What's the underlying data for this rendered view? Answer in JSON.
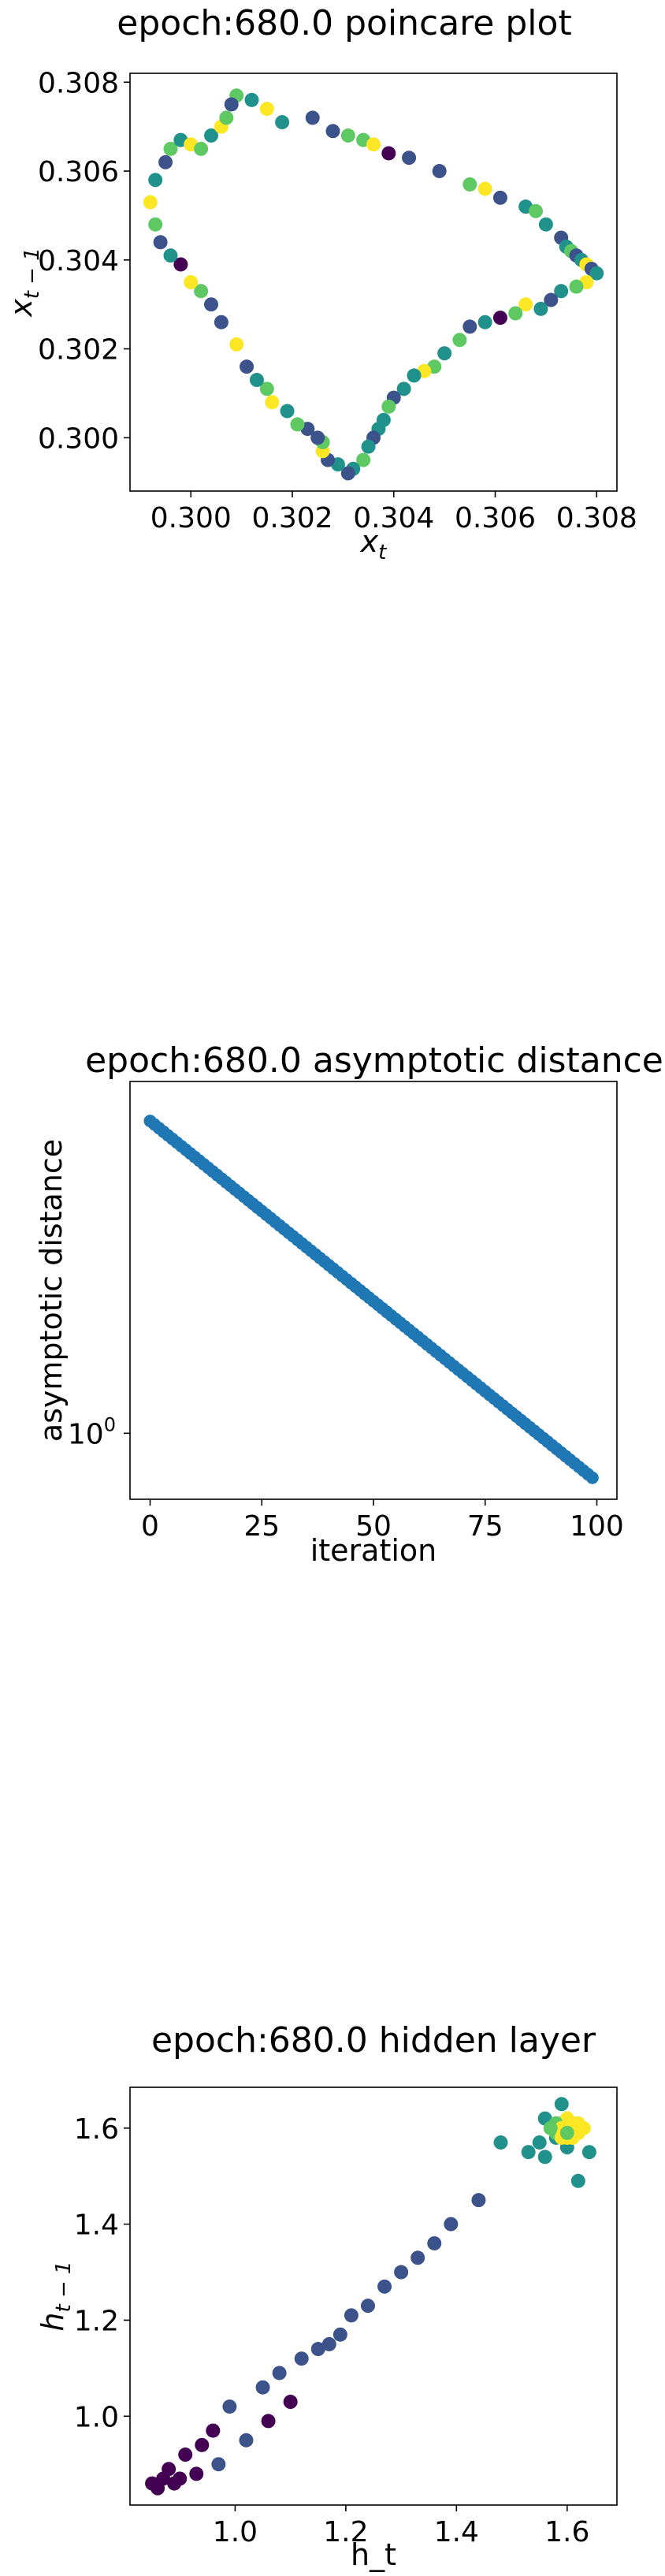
{
  "chart_data": [
    {
      "type": "scatter",
      "title": "epoch:680.0 poincare plot",
      "xlabel_base": "x",
      "xlabel_sub": "t",
      "ylabel_base": "x",
      "ylabel_sub": "t − 1",
      "xlim": [
        0.2988,
        0.3084
      ],
      "ylim": [
        0.2988,
        0.3082
      ],
      "xticks": [
        "0.300",
        "0.302",
        "0.304",
        "0.306",
        "0.308"
      ],
      "yticks": [
        "0.300",
        "0.302",
        "0.304",
        "0.306",
        "0.308"
      ],
      "colormap": "viridis",
      "palette": [
        "#440154",
        "#3b528b",
        "#21918c",
        "#5ec962",
        "#fde725"
      ],
      "points": [
        [
          0.3009,
          0.3077,
          3
        ],
        [
          0.3012,
          0.3076,
          2
        ],
        [
          0.3015,
          0.3074,
          4
        ],
        [
          0.3018,
          0.3071,
          2
        ],
        [
          0.3024,
          0.3072,
          1
        ],
        [
          0.3028,
          0.3069,
          1
        ],
        [
          0.3031,
          0.3068,
          3
        ],
        [
          0.3034,
          0.3067,
          3
        ],
        [
          0.3036,
          0.3066,
          4
        ],
        [
          0.3039,
          0.3064,
          0
        ],
        [
          0.3043,
          0.3063,
          1
        ],
        [
          0.3049,
          0.306,
          1
        ],
        [
          0.3055,
          0.3057,
          3
        ],
        [
          0.3058,
          0.3056,
          4
        ],
        [
          0.3061,
          0.3054,
          1
        ],
        [
          0.3066,
          0.3052,
          2
        ],
        [
          0.3068,
          0.3051,
          3
        ],
        [
          0.307,
          0.3048,
          2
        ],
        [
          0.3073,
          0.3045,
          1
        ],
        [
          0.3074,
          0.3043,
          2
        ],
        [
          0.3075,
          0.3042,
          3
        ],
        [
          0.3076,
          0.3041,
          1
        ],
        [
          0.3077,
          0.304,
          2
        ],
        [
          0.3078,
          0.3039,
          4
        ],
        [
          0.3079,
          0.3038,
          1
        ],
        [
          0.308,
          0.3037,
          2
        ],
        [
          0.3078,
          0.3035,
          4
        ],
        [
          0.3076,
          0.3034,
          3
        ],
        [
          0.3073,
          0.3033,
          2
        ],
        [
          0.3071,
          0.3031,
          1
        ],
        [
          0.3069,
          0.3029,
          2
        ],
        [
          0.3066,
          0.303,
          4
        ],
        [
          0.3064,
          0.3028,
          3
        ],
        [
          0.3061,
          0.3027,
          0
        ],
        [
          0.3058,
          0.3026,
          2
        ],
        [
          0.3055,
          0.3025,
          1
        ],
        [
          0.3053,
          0.3022,
          3
        ],
        [
          0.305,
          0.3019,
          2
        ],
        [
          0.3048,
          0.3016,
          3
        ],
        [
          0.3046,
          0.3015,
          4
        ],
        [
          0.3044,
          0.3014,
          2
        ],
        [
          0.3042,
          0.3011,
          2
        ],
        [
          0.304,
          0.3009,
          1
        ],
        [
          0.3039,
          0.3007,
          3
        ],
        [
          0.3038,
          0.3004,
          2
        ],
        [
          0.3037,
          0.3002,
          2
        ],
        [
          0.3036,
          0.3,
          1
        ],
        [
          0.3035,
          0.2998,
          2
        ],
        [
          0.3034,
          0.2995,
          3
        ],
        [
          0.3032,
          0.2993,
          2
        ],
        [
          0.3031,
          0.2992,
          1
        ],
        [
          0.3029,
          0.2994,
          2
        ],
        [
          0.3027,
          0.2995,
          1
        ],
        [
          0.3026,
          0.2997,
          4
        ],
        [
          0.3026,
          0.2999,
          3
        ],
        [
          0.3025,
          0.3,
          1
        ],
        [
          0.3023,
          0.3002,
          1
        ],
        [
          0.3021,
          0.3003,
          3
        ],
        [
          0.3019,
          0.3006,
          2
        ],
        [
          0.3016,
          0.3008,
          4
        ],
        [
          0.3015,
          0.3011,
          3
        ],
        [
          0.3013,
          0.3013,
          2
        ],
        [
          0.3011,
          0.3016,
          1
        ],
        [
          0.3009,
          0.3021,
          4
        ],
        [
          0.3006,
          0.3026,
          1
        ],
        [
          0.3004,
          0.303,
          1
        ],
        [
          0.3002,
          0.3033,
          3
        ],
        [
          0.3,
          0.3035,
          4
        ],
        [
          0.2998,
          0.3039,
          0
        ],
        [
          0.2996,
          0.3041,
          2
        ],
        [
          0.2994,
          0.3044,
          1
        ],
        [
          0.2993,
          0.3048,
          3
        ],
        [
          0.2992,
          0.3053,
          4
        ],
        [
          0.2993,
          0.3058,
          2
        ],
        [
          0.2995,
          0.3062,
          1
        ],
        [
          0.2996,
          0.3065,
          3
        ],
        [
          0.2998,
          0.3067,
          2
        ],
        [
          0.3,
          0.3066,
          4
        ],
        [
          0.3002,
          0.3065,
          3
        ],
        [
          0.3004,
          0.3068,
          2
        ],
        [
          0.3006,
          0.307,
          4
        ],
        [
          0.3007,
          0.3072,
          3
        ],
        [
          0.3008,
          0.3075,
          1
        ]
      ]
    },
    {
      "type": "scatter",
      "title": "epoch:680.0 asymptotic distance",
      "xlabel": "iteration",
      "ylabel": "asymptotic distance",
      "yscale": "log",
      "xlim": [
        -4.5,
        104.5
      ],
      "log10_ylim": [
        -0.12,
        0.64
      ],
      "xticks": [
        0,
        25,
        50,
        75,
        100
      ],
      "ytick_base": "10",
      "ytick_exp": "0",
      "ytick_value": 1,
      "color": "#1f77b4",
      "y_start": 3.7,
      "y_end": 0.83,
      "n_points": 100
    },
    {
      "type": "scatter",
      "title": "epoch:680.0 hidden layer",
      "xlabel": "h_t",
      "ylabel_base": "h",
      "ylabel_sub": "t − 1",
      "xlim": [
        0.81,
        1.69
      ],
      "ylim": [
        0.815,
        1.685
      ],
      "xticks": [
        "1.0",
        "1.2",
        "1.4",
        "1.6"
      ],
      "yticks": [
        "1.0",
        "1.2",
        "1.4",
        "1.6"
      ],
      "colormap": "viridis",
      "palette": [
        "#440154",
        "#3b528b",
        "#21918c",
        "#5ec962",
        "#fde725"
      ],
      "points": [
        [
          0.85,
          0.86,
          0
        ],
        [
          0.86,
          0.85,
          0
        ],
        [
          0.87,
          0.87,
          0
        ],
        [
          0.88,
          0.89,
          0
        ],
        [
          0.89,
          0.86,
          0
        ],
        [
          0.9,
          0.87,
          0
        ],
        [
          0.91,
          0.92,
          0
        ],
        [
          0.93,
          0.88,
          0
        ],
        [
          0.94,
          0.94,
          0
        ],
        [
          0.96,
          0.97,
          0
        ],
        [
          0.97,
          0.9,
          1
        ],
        [
          0.99,
          1.02,
          1
        ],
        [
          1.02,
          0.95,
          1
        ],
        [
          1.05,
          1.06,
          1
        ],
        [
          1.06,
          0.99,
          0
        ],
        [
          1.08,
          1.09,
          1
        ],
        [
          1.1,
          1.03,
          0
        ],
        [
          1.12,
          1.12,
          1
        ],
        [
          1.15,
          1.14,
          1
        ],
        [
          1.17,
          1.15,
          1
        ],
        [
          1.19,
          1.17,
          1
        ],
        [
          1.21,
          1.21,
          1
        ],
        [
          1.24,
          1.23,
          1
        ],
        [
          1.27,
          1.27,
          1
        ],
        [
          1.3,
          1.3,
          1
        ],
        [
          1.33,
          1.33,
          1
        ],
        [
          1.36,
          1.36,
          1
        ],
        [
          1.39,
          1.4,
          1
        ],
        [
          1.44,
          1.45,
          1
        ],
        [
          1.48,
          1.57,
          2
        ],
        [
          1.53,
          1.55,
          2
        ],
        [
          1.55,
          1.57,
          2
        ],
        [
          1.56,
          1.54,
          2
        ],
        [
          1.56,
          1.62,
          2
        ],
        [
          1.58,
          1.58,
          2
        ],
        [
          1.59,
          1.65,
          2
        ],
        [
          1.6,
          1.56,
          2
        ],
        [
          1.62,
          1.49,
          2
        ],
        [
          1.64,
          1.55,
          2
        ],
        [
          1.58,
          1.59,
          3
        ],
        [
          1.59,
          1.61,
          3
        ],
        [
          1.6,
          1.6,
          4
        ],
        [
          1.61,
          1.59,
          4
        ],
        [
          1.59,
          1.58,
          4
        ],
        [
          1.62,
          1.61,
          4
        ],
        [
          1.6,
          1.62,
          4
        ],
        [
          1.61,
          1.58,
          4
        ],
        [
          1.58,
          1.61,
          3
        ],
        [
          1.62,
          1.59,
          4
        ],
        [
          1.59,
          1.6,
          4
        ],
        [
          1.6,
          1.58,
          4
        ],
        [
          1.61,
          1.61,
          4
        ],
        [
          1.57,
          1.6,
          3
        ],
        [
          1.63,
          1.6,
          4
        ],
        [
          1.6,
          1.59,
          3
        ]
      ]
    }
  ]
}
